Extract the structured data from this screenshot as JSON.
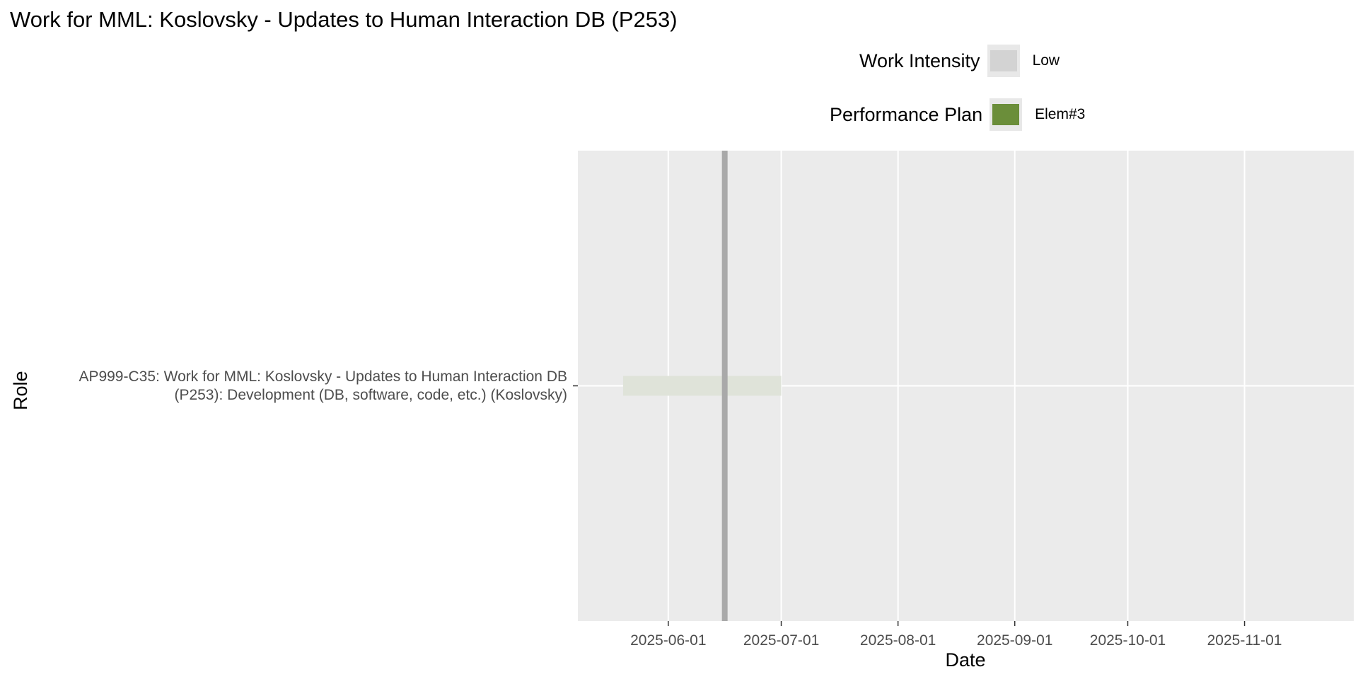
{
  "chart_data": {
    "type": "gantt",
    "title": "Work for MML: Koslovsky - Updates to Human Interaction DB (P253)",
    "xlabel": "Date",
    "ylabel": "Role",
    "categories": [
      "AP999-C35: Work for MML: Koslovsky - Updates to Human Interaction DB\n(P253): Development (DB, software, code, etc.) (Koslovsky)"
    ],
    "x_ticks": [
      "2025-06-01",
      "2025-07-01",
      "2025-08-01",
      "2025-09-01",
      "2025-10-01",
      "2025-11-01"
    ],
    "xlim": [
      "2025-05-08",
      "2025-11-30"
    ],
    "tasks": [
      {
        "category_index": 0,
        "start": "2025-05-20",
        "end": "2025-07-01",
        "intensity": "Low"
      }
    ],
    "markers": [
      {
        "date": "2025-06-16",
        "plan": "Elem#3"
      }
    ],
    "grid": true,
    "legend_position": "top",
    "legends": [
      {
        "title": "Work Intensity",
        "label": "Low",
        "color": "#d3d3d3"
      },
      {
        "title": "Performance Plan",
        "label": "Elem#3",
        "color": "#6b8e3a"
      }
    ],
    "colors": {
      "panel": "#ebebeb",
      "grid": "#ffffff",
      "task_fill": "#dfe3d9",
      "marker": "#a9a9a9",
      "tick_text": "#4d4d4d"
    }
  }
}
